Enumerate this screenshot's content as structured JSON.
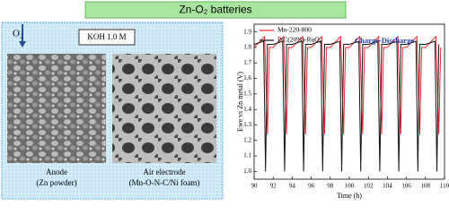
{
  "header": {
    "title": "Zn-O₂ batteries"
  },
  "schematic": {
    "gas": "O₂",
    "electrolyte": "KOH 1.0 M",
    "anode": {
      "name": "Anode",
      "material": "(Zn powder)"
    },
    "cathode": {
      "name": "Air electrode",
      "material": "(Mn-O-N-C/Ni foam)"
    }
  },
  "chart_data": {
    "type": "line",
    "annotation": "Charge-Discharge",
    "xlabel": "Time (h)",
    "ylabel": "Ewe vs Zn metal (V)",
    "xlim": [
      90,
      110
    ],
    "xticks": [
      90,
      92,
      94,
      96,
      98,
      100,
      102,
      104,
      106,
      108,
      110
    ],
    "ylim": [
      0.95,
      1.95
    ],
    "yticks": [
      {
        "value": 1,
        "label": "1.0"
      },
      {
        "value": 1.1,
        "label": "1.1"
      },
      {
        "value": 1.2,
        "label": "1.2"
      },
      {
        "value": 1.3,
        "label": "1.3"
      },
      {
        "value": 1.4,
        "label": "1.4"
      },
      {
        "value": 1.5,
        "label": "1.5"
      },
      {
        "value": 1.6,
        "label": "1.6"
      },
      {
        "value": 1.7,
        "label": "1.7"
      },
      {
        "value": 1.8,
        "label": "1.8"
      },
      {
        "value": 1.9,
        "label": "1.9"
      }
    ],
    "legend": "upper left",
    "series": [
      {
        "name": "Mn-220-800",
        "color": "#e8282e",
        "x": [
          90.0,
          91.1,
          91.4,
          91.6,
          92.0,
          93.1,
          93.4,
          93.6,
          94.0,
          95.1,
          95.4,
          95.6,
          96.0,
          97.1,
          97.4,
          97.6,
          98.0,
          99.1,
          99.4,
          99.6,
          100.0,
          101.1,
          101.4,
          101.6,
          102.0,
          103.1,
          103.4,
          103.6,
          104.0,
          105.1,
          105.4,
          105.6,
          106.0,
          107.1,
          107.4,
          107.6,
          108.0,
          109.1,
          109.4,
          109.6
        ],
        "values": [
          1.8,
          1.87,
          1.24,
          1.8,
          1.8,
          1.87,
          1.24,
          1.8,
          1.8,
          1.87,
          1.24,
          1.8,
          1.8,
          1.87,
          1.24,
          1.8,
          1.8,
          1.87,
          1.24,
          1.8,
          1.8,
          1.87,
          1.24,
          1.8,
          1.8,
          1.87,
          1.24,
          1.8,
          1.8,
          1.87,
          1.24,
          1.8,
          1.8,
          1.87,
          1.24,
          1.8,
          1.8,
          1.87,
          1.24,
          1.8
        ]
      },
      {
        "name": "PtC(20%)-RuO₂",
        "color": "#111111",
        "x": [
          90.0,
          91.0,
          91.2,
          91.4,
          92.0,
          93.0,
          93.2,
          93.4,
          94.0,
          95.0,
          95.2,
          95.4,
          96.0,
          97.0,
          97.2,
          97.4,
          98.0,
          99.0,
          99.2,
          99.4,
          100.0,
          101.0,
          101.2,
          101.4,
          102.0,
          103.0,
          103.2,
          103.4,
          104.0,
          105.0,
          105.2,
          105.4,
          106.0,
          107.0,
          107.2,
          107.4,
          108.0,
          109.0,
          109.2,
          109.4
        ],
        "values": [
          1.82,
          1.84,
          1.0,
          1.82,
          1.82,
          1.84,
          1.0,
          1.82,
          1.82,
          1.84,
          1.0,
          1.82,
          1.82,
          1.84,
          1.0,
          1.82,
          1.82,
          1.84,
          1.0,
          1.82,
          1.82,
          1.84,
          1.0,
          1.82,
          1.82,
          1.84,
          1.0,
          1.82,
          1.82,
          1.84,
          1.0,
          1.82,
          1.82,
          1.84,
          1.0,
          1.82,
          1.82,
          1.84,
          1.0,
          1.82
        ]
      }
    ]
  }
}
